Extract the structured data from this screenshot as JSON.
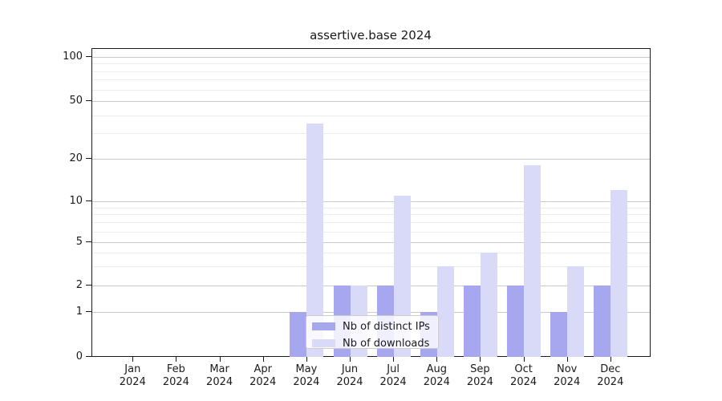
{
  "chart_data": {
    "type": "bar",
    "title": "assertive.base 2024",
    "categories": [
      "Jan 2024",
      "Feb 2024",
      "Mar 2024",
      "Apr 2024",
      "May 2024",
      "Jun 2024",
      "Jul 2024",
      "Aug 2024",
      "Sep 2024",
      "Oct 2024",
      "Nov 2024",
      "Dec 2024"
    ],
    "series": [
      {
        "name": "Nb of distinct IPs",
        "color": "#a7a7f0",
        "values": [
          0,
          0,
          0,
          0,
          1,
          2,
          2,
          1,
          2,
          2,
          1,
          2
        ]
      },
      {
        "name": "Nb of downloads",
        "color": "#d9d9f8",
        "values": [
          0,
          0,
          0,
          0,
          35,
          2,
          11,
          3,
          4,
          18,
          3,
          12
        ]
      }
    ],
    "xlabel": "",
    "ylabel": "",
    "y_axis": {
      "scale": "log-like",
      "range": [
        0,
        100
      ],
      "major_ticks": [
        0,
        1,
        2,
        5,
        10,
        20,
        50,
        100
      ],
      "minor_gridlines": [
        3,
        4,
        6,
        7,
        8,
        9,
        30,
        40,
        60,
        70,
        80,
        90
      ]
    },
    "grid": "horizontal major+minor",
    "legend_position": "inside lower-center"
  },
  "colors": {
    "bar_dark": "#a7a7f0",
    "bar_light": "#d9d9f8",
    "axis": "#1a1a1a",
    "grid_major": "#c9c9c9",
    "grid_minor": "#ececec",
    "background": "#ffffff"
  }
}
